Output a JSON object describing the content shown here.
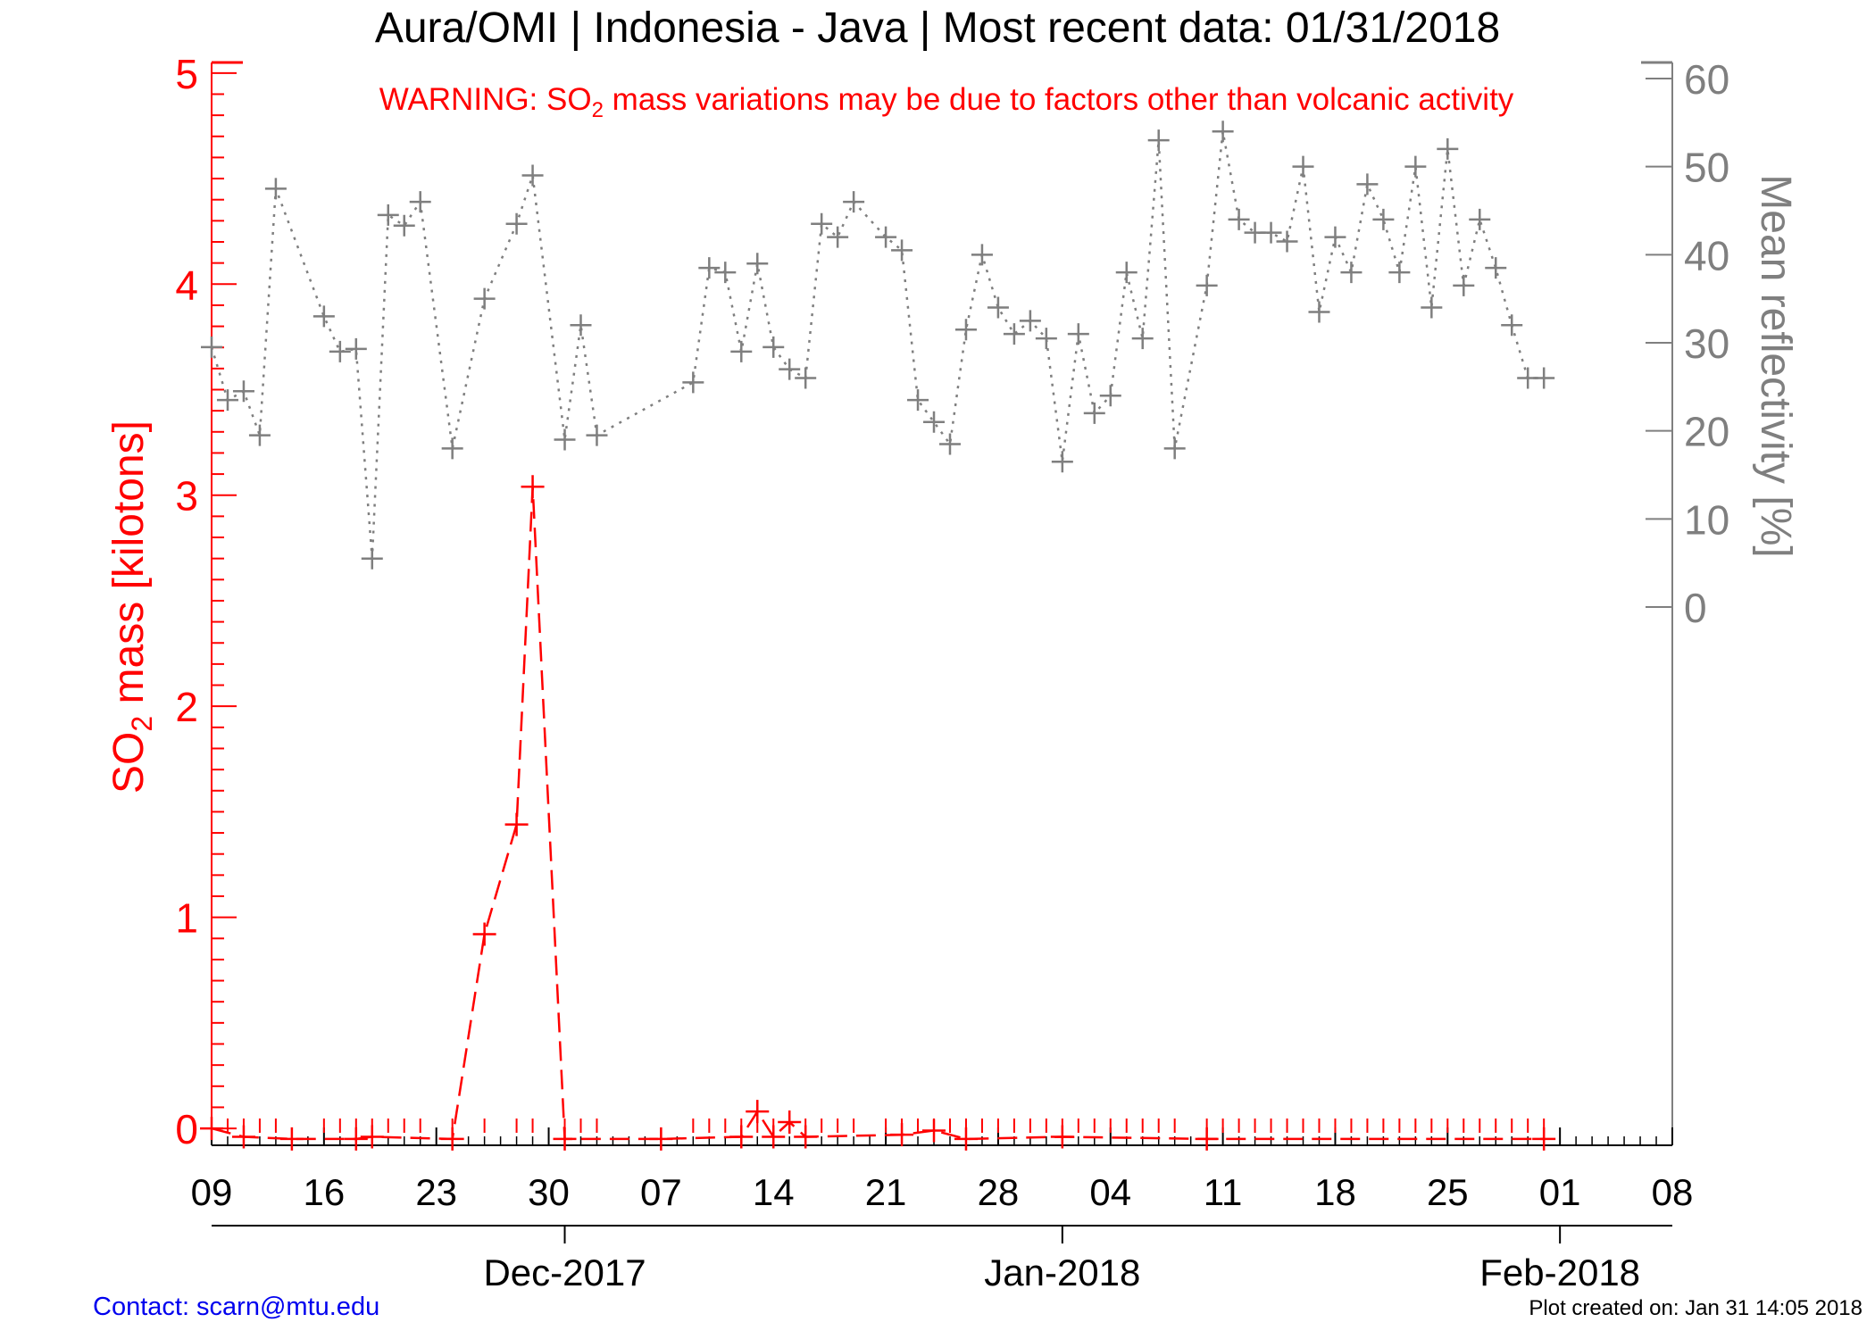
{
  "chart_data": {
    "type": "line",
    "title": "Aura/OMI | Indonesia - Java | Most recent data: 01/31/2018",
    "warning": {
      "pre": "WARNING: SO",
      "sub": "2",
      "post": " mass variations may be due to factors other than volcanic activity"
    },
    "ylabel_left": {
      "pre": "SO",
      "sub": "2",
      "post": " mass [kilotons]"
    },
    "ylabel_right": "Mean reflectivity [%]",
    "y_left_range": [
      -0.08,
      5.05
    ],
    "y_left_ticks": [
      "0",
      "1",
      "2",
      "3",
      "4",
      "5"
    ],
    "y_right_ticks": [
      "0",
      "10",
      "20",
      "30",
      "40",
      "50",
      "60"
    ],
    "x_range": [
      "2017-11-09",
      "2018-02-08"
    ],
    "x_ticks": [
      "09",
      "16",
      "23",
      "30",
      "07",
      "14",
      "21",
      "28",
      "04",
      "11",
      "18",
      "25",
      "01",
      "08"
    ],
    "x_months": [
      "Dec-2017",
      "Jan-2018",
      "Feb-2018"
    ],
    "colors": {
      "so2": "#ff0000",
      "reflectivity": "#7f7f7f",
      "axis": "#000000",
      "contact": "#0000ee"
    },
    "series": [
      {
        "name": "SO2 mass",
        "axis": "left",
        "style": "dashed",
        "points": [
          [
            "2017-11-09",
            0.0
          ],
          [
            "2017-11-11",
            -0.04
          ],
          [
            "2017-11-14",
            -0.05
          ],
          [
            "2017-11-18",
            -0.05
          ],
          [
            "2017-11-19",
            -0.04
          ],
          [
            "2017-11-24",
            -0.05
          ],
          [
            "2017-11-26",
            0.92
          ],
          [
            "2017-11-28",
            1.44
          ],
          [
            "2017-11-29",
            3.04
          ],
          [
            "2017-12-01",
            -0.05
          ],
          [
            "2017-12-07",
            -0.05
          ],
          [
            "2017-12-12",
            -0.04
          ],
          [
            "2017-12-13",
            0.08
          ],
          [
            "2017-12-14",
            -0.04
          ],
          [
            "2017-12-15",
            0.03
          ],
          [
            "2017-12-16",
            -0.04
          ],
          [
            "2017-12-22",
            -0.03
          ],
          [
            "2017-12-24",
            -0.01
          ],
          [
            "2017-12-26",
            -0.05
          ],
          [
            "2018-01-01",
            -0.04
          ],
          [
            "2018-01-10",
            -0.05
          ],
          [
            "2018-01-31",
            -0.05
          ]
        ]
      },
      {
        "name": "Mean reflectivity",
        "axis": "right",
        "style": "dotted",
        "points": [
          [
            "2017-11-09",
            29.5
          ],
          [
            "2017-11-10",
            23.5
          ],
          [
            "2017-11-11",
            24.5
          ],
          [
            "2017-11-12",
            19.5
          ],
          [
            "2017-11-13",
            47.5
          ],
          [
            "2017-11-16",
            33.0
          ],
          [
            "2017-11-17",
            29.0
          ],
          [
            "2017-11-18",
            29.3
          ],
          [
            "2017-11-19",
            5.5
          ],
          [
            "2017-11-20",
            44.5
          ],
          [
            "2017-11-21",
            43.3
          ],
          [
            "2017-11-22",
            46.0
          ],
          [
            "2017-11-24",
            18.0
          ],
          [
            "2017-11-26",
            35.0
          ],
          [
            "2017-11-28",
            43.5
          ],
          [
            "2017-11-29",
            49.0
          ],
          [
            "2017-12-01",
            19.0
          ],
          [
            "2017-12-02",
            32.0
          ],
          [
            "2017-12-03",
            19.5
          ],
          [
            "2017-12-09",
            25.5
          ],
          [
            "2017-12-10",
            38.5
          ],
          [
            "2017-12-11",
            38.0
          ],
          [
            "2017-12-12",
            29.0
          ],
          [
            "2017-12-13",
            39.0
          ],
          [
            "2017-12-14",
            29.5
          ],
          [
            "2017-12-15",
            27.0
          ],
          [
            "2017-12-16",
            26.0
          ],
          [
            "2017-12-17",
            43.5
          ],
          [
            "2017-12-18",
            42.0
          ],
          [
            "2017-12-19",
            46.0
          ],
          [
            "2017-12-21",
            42.0
          ],
          [
            "2017-12-22",
            40.5
          ],
          [
            "2017-12-23",
            23.5
          ],
          [
            "2017-12-24",
            21.0
          ],
          [
            "2017-12-25",
            18.5
          ],
          [
            "2017-12-26",
            31.5
          ],
          [
            "2017-12-27",
            40.0
          ],
          [
            "2017-12-28",
            34.0
          ],
          [
            "2017-12-29",
            31.0
          ],
          [
            "2017-12-30",
            32.5
          ],
          [
            "2017-12-31",
            30.5
          ],
          [
            "2018-01-01",
            16.5
          ],
          [
            "2018-01-02",
            31.0
          ],
          [
            "2018-01-03",
            22.0
          ],
          [
            "2018-01-04",
            24.0
          ],
          [
            "2018-01-05",
            38.0
          ],
          [
            "2018-01-06",
            30.5
          ],
          [
            "2018-01-07",
            53.0
          ],
          [
            "2018-01-08",
            18.0
          ],
          [
            "2018-01-10",
            36.5
          ],
          [
            "2018-01-11",
            54.0
          ],
          [
            "2018-01-12",
            44.0
          ],
          [
            "2018-01-13",
            42.5
          ],
          [
            "2018-01-14",
            42.5
          ],
          [
            "2018-01-15",
            41.5
          ],
          [
            "2018-01-16",
            50.0
          ],
          [
            "2018-01-17",
            33.5
          ],
          [
            "2018-01-18",
            42.0
          ],
          [
            "2018-01-19",
            38.0
          ],
          [
            "2018-01-20",
            48.0
          ],
          [
            "2018-01-21",
            44.0
          ],
          [
            "2018-01-22",
            38.0
          ],
          [
            "2018-01-23",
            50.0
          ],
          [
            "2018-01-24",
            34.0
          ],
          [
            "2018-01-25",
            52.0
          ],
          [
            "2018-01-26",
            36.5
          ],
          [
            "2018-01-27",
            44.0
          ],
          [
            "2018-01-28",
            38.5
          ],
          [
            "2018-01-29",
            32.0
          ],
          [
            "2018-01-30",
            26.0
          ],
          [
            "2018-01-31",
            26.0
          ]
        ]
      }
    ],
    "grid": false
  },
  "footer": {
    "contact": "Contact: scarn@mtu.edu",
    "created": "Plot created on: Jan 31 14:05 2018"
  }
}
